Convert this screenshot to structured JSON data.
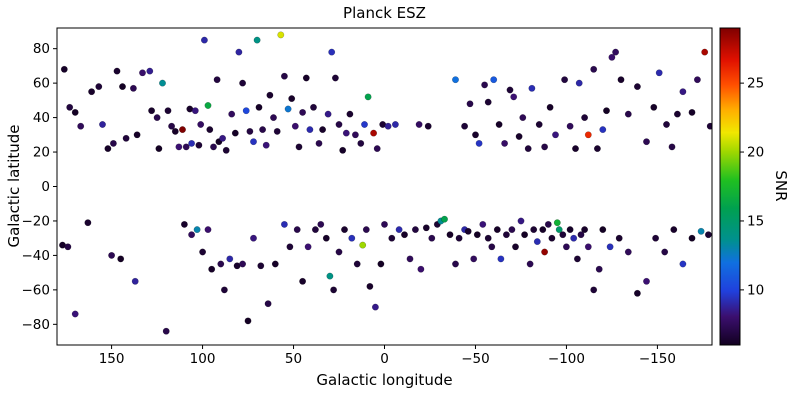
{
  "title": "Planck ESZ",
  "axes": {
    "xlim": [
      180,
      -180
    ],
    "xticks": [
      150,
      100,
      50,
      0,
      -50,
      -100,
      -150
    ],
    "ylim": [
      -92,
      92
    ],
    "yticks": [
      -80,
      -60,
      -40,
      -20,
      0,
      20,
      40,
      60,
      80
    ]
  },
  "colorbar": {
    "label": "SNR",
    "vmin": 6,
    "vmax": 29,
    "ticks": [
      10,
      15,
      20,
      25
    ],
    "stops": [
      [
        0.0,
        "#120020"
      ],
      [
        0.09,
        "#3b0f6f"
      ],
      [
        0.17,
        "#2040dd"
      ],
      [
        0.26,
        "#1070e0"
      ],
      [
        0.33,
        "#009090"
      ],
      [
        0.43,
        "#00a050"
      ],
      [
        0.52,
        "#20c020"
      ],
      [
        0.61,
        "#a0d800"
      ],
      [
        0.67,
        "#f0e800"
      ],
      [
        0.74,
        "#ffb000"
      ],
      [
        0.82,
        "#ff5000"
      ],
      [
        0.9,
        "#e01000"
      ],
      [
        1.0,
        "#7f0000"
      ]
    ]
  },
  "chart_data": {
    "type": "scatter",
    "title": "Planck ESZ",
    "xlabel": "Galactic longitude",
    "ylabel": "Galactic latitude",
    "colorbar_label": "SNR",
    "xlim": [
      180,
      -180
    ],
    "ylim": [
      -92,
      92
    ],
    "color_scale": {
      "vmin": 6,
      "vmax": 29,
      "ticks": [
        10,
        15,
        20,
        25
      ]
    },
    "legend": "none",
    "grid": false,
    "points": [
      [
        176,
        68,
        6.2
      ],
      [
        173,
        46,
        6.8
      ],
      [
        170,
        43,
        6.1
      ],
      [
        167,
        35,
        7.5
      ],
      [
        161,
        55,
        6.3
      ],
      [
        157,
        58,
        6.6
      ],
      [
        155,
        36,
        8.8
      ],
      [
        152,
        22,
        6.2
      ],
      [
        149,
        25,
        7.1
      ],
      [
        147,
        67,
        6.4
      ],
      [
        144,
        58,
        6.1
      ],
      [
        142,
        28,
        6.7
      ],
      [
        138,
        57,
        7.3
      ],
      [
        136,
        30,
        6.2
      ],
      [
        133,
        66,
        7.9
      ],
      [
        129,
        67,
        8.6
      ],
      [
        128,
        44,
        6.3
      ],
      [
        125,
        40,
        7.2
      ],
      [
        124,
        22,
        6.1
      ],
      [
        122,
        60,
        13.5
      ],
      [
        119,
        44,
        6.5
      ],
      [
        117,
        35,
        7
      ],
      [
        115,
        32,
        6.2
      ],
      [
        113,
        23,
        8.1
      ],
      [
        111,
        33,
        29
      ],
      [
        109,
        23,
        7.4
      ],
      [
        107,
        45,
        6.3
      ],
      [
        106,
        25,
        9.2
      ],
      [
        104,
        44,
        8.3
      ],
      [
        102,
        24,
        6.6
      ],
      [
        101,
        36,
        7.7
      ],
      [
        99,
        85,
        9
      ],
      [
        97,
        47,
        16.5
      ],
      [
        96,
        33,
        6.4
      ],
      [
        94,
        23,
        7.2
      ],
      [
        92,
        62,
        6.8
      ],
      [
        91,
        26,
        6.1
      ],
      [
        89,
        28,
        8.4
      ],
      [
        87,
        21,
        6.5
      ],
      [
        84,
        42,
        7.6
      ],
      [
        82,
        31,
        6.2
      ],
      [
        80,
        78,
        8.9
      ],
      [
        78,
        60,
        6.6
      ],
      [
        76,
        44,
        10.2
      ],
      [
        74,
        32,
        6.9
      ],
      [
        72,
        26,
        9.4
      ],
      [
        70,
        85,
        14
      ],
      [
        69,
        46,
        6.2
      ],
      [
        67,
        33,
        7.1
      ],
      [
        65,
        24,
        8.2
      ],
      [
        63,
        53,
        6.4
      ],
      [
        61,
        40,
        7.3
      ],
      [
        59,
        32,
        6.6
      ],
      [
        57,
        88,
        21
      ],
      [
        55,
        64,
        7
      ],
      [
        53,
        45,
        12.3
      ],
      [
        51,
        51,
        6.3
      ],
      [
        49,
        35,
        8
      ],
      [
        47,
        23,
        6.5
      ],
      [
        45,
        43,
        7.4
      ],
      [
        43,
        63,
        6.2
      ],
      [
        41,
        33,
        9.1
      ],
      [
        39,
        46,
        6.7
      ],
      [
        36,
        25,
        7.2
      ],
      [
        34,
        33,
        6.3
      ],
      [
        31,
        42,
        8.5
      ],
      [
        29,
        78,
        9.3
      ],
      [
        27,
        63,
        6.6
      ],
      [
        25,
        36,
        7
      ],
      [
        23,
        21,
        6.2
      ],
      [
        21,
        31,
        8.2
      ],
      [
        19,
        42,
        6.4
      ],
      [
        16,
        30,
        7.5
      ],
      [
        13,
        25,
        6.8
      ],
      [
        11,
        36,
        9.6
      ],
      [
        9,
        52,
        16
      ],
      [
        6,
        31,
        28
      ],
      [
        4,
        22,
        7.3
      ],
      [
        1,
        36,
        6.5
      ],
      [
        -2,
        35,
        8.7
      ],
      [
        -6,
        36,
        9
      ],
      [
        -19,
        36,
        7.7
      ],
      [
        -24,
        35,
        6.4
      ],
      [
        -39,
        62,
        12
      ],
      [
        -44,
        35,
        6.6
      ],
      [
        -47,
        48,
        7.1
      ],
      [
        -50,
        30,
        6.3
      ],
      [
        -52,
        25,
        9.5
      ],
      [
        -55,
        59,
        7.2
      ],
      [
        -57,
        49,
        6.5
      ],
      [
        -60,
        62,
        11
      ],
      [
        -63,
        36,
        6.2
      ],
      [
        -66,
        25,
        7.8
      ],
      [
        -69,
        56,
        6.6
      ],
      [
        -71,
        52,
        8.1
      ],
      [
        -74,
        29,
        6.3
      ],
      [
        -76,
        40,
        7.4
      ],
      [
        -79,
        22,
        6.7
      ],
      [
        -81,
        57,
        9.2
      ],
      [
        -85,
        36,
        6.5
      ],
      [
        -88,
        23,
        7
      ],
      [
        -91,
        46,
        6.2
      ],
      [
        -94,
        30,
        8.3
      ],
      [
        -99,
        62,
        6.8
      ],
      [
        -102,
        35,
        7.5
      ],
      [
        -105,
        22,
        6.3
      ],
      [
        -107,
        60,
        9
      ],
      [
        -110,
        40,
        6.6
      ],
      [
        -112,
        30,
        26
      ],
      [
        -115,
        68,
        7.2
      ],
      [
        -117,
        22,
        6.4
      ],
      [
        -120,
        33,
        9.4
      ],
      [
        -122,
        44,
        6.1
      ],
      [
        -125,
        75,
        8
      ],
      [
        -127,
        78,
        7.6
      ],
      [
        -130,
        62,
        6.3
      ],
      [
        -134,
        42,
        7.1
      ],
      [
        -139,
        58,
        6.5
      ],
      [
        -144,
        26,
        7.3
      ],
      [
        -148,
        46,
        6.2
      ],
      [
        -151,
        66,
        9.1
      ],
      [
        -155,
        36,
        6.7
      ],
      [
        -158,
        23,
        7
      ],
      [
        -161,
        42,
        6.4
      ],
      [
        -164,
        55,
        8.4
      ],
      [
        -169,
        43,
        6.2
      ],
      [
        -172,
        62,
        7.5
      ],
      [
        -176,
        78,
        28
      ],
      [
        -179,
        35,
        6.6
      ],
      [
        177,
        -34,
        6.2
      ],
      [
        174,
        -35,
        7
      ],
      [
        170,
        -74,
        8.2
      ],
      [
        163,
        -21,
        6.4
      ],
      [
        150,
        -40,
        7.3
      ],
      [
        145,
        -42,
        6.1
      ],
      [
        137,
        -55,
        8.8
      ],
      [
        120,
        -84,
        7.1
      ],
      [
        110,
        -22,
        6.3
      ],
      [
        106,
        -28,
        7.6
      ],
      [
        103,
        -25,
        13
      ],
      [
        100,
        -38,
        6.5
      ],
      [
        97,
        -25,
        8
      ],
      [
        95,
        -48,
        6.2
      ],
      [
        90,
        -45,
        7.2
      ],
      [
        88,
        -60,
        6.6
      ],
      [
        85,
        -42,
        9
      ],
      [
        81,
        -46,
        6.3
      ],
      [
        78,
        -45,
        7.4
      ],
      [
        75,
        -78,
        6.1
      ],
      [
        72,
        -30,
        8.3
      ],
      [
        68,
        -46,
        6.5
      ],
      [
        64,
        -68,
        7
      ],
      [
        60,
        -45,
        6.2
      ],
      [
        55,
        -22,
        9.2
      ],
      [
        52,
        -35,
        6.6
      ],
      [
        48,
        -25,
        7.1
      ],
      [
        45,
        -55,
        6.3
      ],
      [
        42,
        -35,
        8.1
      ],
      [
        38,
        -25,
        6.7
      ],
      [
        35,
        -22,
        7.3
      ],
      [
        32,
        -30,
        6.2
      ],
      [
        30,
        -52,
        14
      ],
      [
        28,
        -60,
        6.5
      ],
      [
        25,
        -38,
        7
      ],
      [
        22,
        -25,
        6.4
      ],
      [
        18,
        -30,
        9.3
      ],
      [
        15,
        -45,
        6.6
      ],
      [
        12,
        -34,
        20
      ],
      [
        10,
        -25,
        7.2
      ],
      [
        8,
        -58,
        6.3
      ],
      [
        5,
        -70,
        8.5
      ],
      [
        2,
        -45,
        6.1
      ],
      [
        0,
        -22,
        7.4
      ],
      [
        -4,
        -30,
        6.6
      ],
      [
        -8,
        -25,
        9.1
      ],
      [
        -11,
        -28,
        6.2
      ],
      [
        -14,
        -42,
        7.5
      ],
      [
        -17,
        -25,
        6.8
      ],
      [
        -20,
        -48,
        8
      ],
      [
        -23,
        -24,
        6.3
      ],
      [
        -26,
        -30,
        7.2
      ],
      [
        -29,
        -22,
        6.5
      ],
      [
        -31,
        -20,
        13.5
      ],
      [
        -33,
        -19,
        16
      ],
      [
        -36,
        -28,
        6.2
      ],
      [
        -39,
        -45,
        7.1
      ],
      [
        -41,
        -30,
        6.6
      ],
      [
        -44,
        -25,
        9
      ],
      [
        -46,
        -26,
        6.3
      ],
      [
        -49,
        -42,
        7.6
      ],
      [
        -51,
        -28,
        6.1
      ],
      [
        -54,
        -22,
        8.2
      ],
      [
        -57,
        -30,
        6.5
      ],
      [
        -59,
        -35,
        7
      ],
      [
        -62,
        -25,
        6.2
      ],
      [
        -64,
        -42,
        9.4
      ],
      [
        -67,
        -28,
        6.6
      ],
      [
        -70,
        -25,
        7.2
      ],
      [
        -72,
        -35,
        6.3
      ],
      [
        -75,
        -20,
        8.4
      ],
      [
        -77,
        -28,
        6.1
      ],
      [
        -80,
        -45,
        7.3
      ],
      [
        -82,
        -25,
        6.5
      ],
      [
        -84,
        -32,
        9.2
      ],
      [
        -87,
        -25,
        6.2
      ],
      [
        -88,
        -38,
        28.5
      ],
      [
        -90,
        -22,
        7.1
      ],
      [
        -92,
        -30,
        6.4
      ],
      [
        -95,
        -21,
        17
      ],
      [
        -96,
        -25,
        15
      ],
      [
        -98,
        -28,
        6.6
      ],
      [
        -100,
        -35,
        7.4
      ],
      [
        -102,
        -25,
        6.2
      ],
      [
        -104,
        -30,
        9.1
      ],
      [
        -106,
        -42,
        6.5
      ],
      [
        -108,
        -28,
        7
      ],
      [
        -110,
        -25,
        6.3
      ],
      [
        -112,
        -35,
        8
      ],
      [
        -115,
        -60,
        6.6
      ],
      [
        -118,
        -48,
        7.2
      ],
      [
        -120,
        -25,
        6.1
      ],
      [
        -124,
        -35,
        9.3
      ],
      [
        -129,
        -30,
        6.4
      ],
      [
        -134,
        -38,
        7.5
      ],
      [
        -139,
        -62,
        6.2
      ],
      [
        -144,
        -55,
        8.1
      ],
      [
        -149,
        -30,
        6.6
      ],
      [
        -154,
        -38,
        7
      ],
      [
        -159,
        -25,
        6.3
      ],
      [
        -164,
        -45,
        9.5
      ],
      [
        -169,
        -30,
        6.1
      ],
      [
        -174,
        -26,
        13
      ],
      [
        -178,
        -28,
        6.5
      ]
    ]
  }
}
